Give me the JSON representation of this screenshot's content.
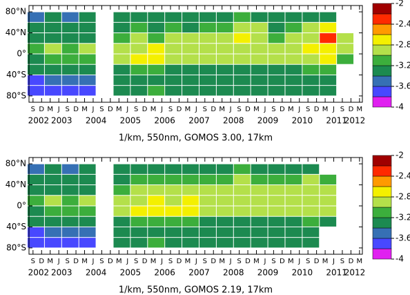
{
  "chart_data": [
    {
      "type": "heatmap",
      "xlabel": "1/km, 550nm, GOMOS 3.00, 17km",
      "xlim": [
        2002.55,
        2012.25
      ],
      "ylim": [
        -92,
        92
      ],
      "yticks": [
        {
          "value": 80,
          "label": "80°N"
        },
        {
          "value": 40,
          "label": "40°N"
        },
        {
          "value": 0,
          "label": "0°"
        },
        {
          "value": -40,
          "label": "40°S"
        },
        {
          "value": -80,
          "label": "80°S"
        }
      ],
      "xticks": [
        {
          "value": 2002.667,
          "label": "S"
        },
        {
          "value": 2002.917,
          "label": "D"
        },
        {
          "value": 2003.167,
          "label": "M"
        },
        {
          "value": 2003.417,
          "label": "J"
        },
        {
          "value": 2003.667,
          "label": "S"
        },
        {
          "value": 2003.917,
          "label": "D"
        },
        {
          "value": 2004.167,
          "label": "M"
        },
        {
          "value": 2004.417,
          "label": "J"
        },
        {
          "value": 2004.667,
          "label": "S"
        },
        {
          "value": 2004.917,
          "label": "D"
        },
        {
          "value": 2005.167,
          "label": "M"
        },
        {
          "value": 2005.417,
          "label": "J"
        },
        {
          "value": 2005.667,
          "label": "S"
        },
        {
          "value": 2005.917,
          "label": "D"
        },
        {
          "value": 2006.167,
          "label": "M"
        },
        {
          "value": 2006.417,
          "label": "J"
        },
        {
          "value": 2006.667,
          "label": "S"
        },
        {
          "value": 2006.917,
          "label": "D"
        },
        {
          "value": 2007.167,
          "label": "M"
        },
        {
          "value": 2007.417,
          "label": "J"
        },
        {
          "value": 2007.667,
          "label": "S"
        },
        {
          "value": 2007.917,
          "label": "D"
        },
        {
          "value": 2008.167,
          "label": "M"
        },
        {
          "value": 2008.417,
          "label": "J"
        },
        {
          "value": 2008.667,
          "label": "S"
        },
        {
          "value": 2008.917,
          "label": "D"
        },
        {
          "value": 2009.167,
          "label": "M"
        },
        {
          "value": 2009.417,
          "label": "J"
        },
        {
          "value": 2009.667,
          "label": "S"
        },
        {
          "value": 2009.917,
          "label": "D"
        },
        {
          "value": 2010.167,
          "label": "M"
        },
        {
          "value": 2010.417,
          "label": "J"
        },
        {
          "value": 2010.667,
          "label": "S"
        },
        {
          "value": 2010.917,
          "label": "D"
        },
        {
          "value": 2011.167,
          "label": "M"
        },
        {
          "value": 2011.417,
          "label": "J"
        },
        {
          "value": 2011.667,
          "label": "S"
        },
        {
          "value": 2011.917,
          "label": "D"
        },
        {
          "value": 2012.167,
          "label": "M"
        }
      ],
      "year_labels": [
        {
          "value": 2002.83,
          "label": "2002"
        },
        {
          "value": 2003.5,
          "label": "2003"
        },
        {
          "value": 2004.5,
          "label": "2004"
        },
        {
          "value": 2005.5,
          "label": "2005"
        },
        {
          "value": 2006.5,
          "label": "2006"
        },
        {
          "value": 2007.5,
          "label": "2007"
        },
        {
          "value": 2008.5,
          "label": "2008"
        },
        {
          "value": 2009.5,
          "label": "2009"
        },
        {
          "value": 2010.5,
          "label": "2010"
        },
        {
          "value": 2011.5,
          "label": "2011"
        },
        {
          "value": 2012.03,
          "label": "2012"
        }
      ],
      "colorbar": {
        "lim": [
          -4,
          -2
        ],
        "ticks": [
          -2,
          -2.4,
          -2.8,
          -3.2,
          -3.6,
          -4
        ],
        "colors": [
          "#e020f0",
          "#4848ff",
          "#3670b4",
          "#1c8a50",
          "#3cae3c",
          "#b4e04a",
          "#f4f000",
          "#ff9a00",
          "#ff2a00",
          "#a00000"
        ]
      },
      "x": [
        2002.75,
        2003.25,
        2003.75,
        2004.25,
        2004.75,
        2005.25,
        2005.75,
        2006.25,
        2006.75,
        2007.25,
        2007.75,
        2008.25,
        2008.75,
        2009.25,
        2009.75,
        2010.25,
        2010.75,
        2011.25,
        2011.75
      ],
      "y": [
        70,
        50,
        30,
        10,
        -10,
        -30,
        -50,
        -70
      ],
      "values": [
        [
          -3.5,
          -3.4,
          -3.5,
          -3.4,
          null,
          -3.3,
          -3.2,
          -3.3,
          -3.2,
          -3.3,
          -3.2,
          -3.3,
          -3.1,
          -3.2,
          -3.3,
          -3.2,
          -3.2,
          -3.3,
          null
        ],
        [
          -3.4,
          -3.3,
          -3.4,
          -3.3,
          null,
          -3.2,
          -3.1,
          -3.2,
          -3.1,
          -3.2,
          -3.1,
          -3.1,
          -2.9,
          -3.0,
          -3.2,
          -3.1,
          -3.0,
          -2.8,
          null
        ],
        [
          -3.3,
          -3.2,
          -3.3,
          -3.2,
          null,
          -3.1,
          -3.0,
          -3.1,
          -3.0,
          -3.0,
          -3.0,
          -3.0,
          -2.7,
          -2.9,
          -3.1,
          -3.0,
          -2.9,
          -2.4,
          -3.0
        ],
        [
          -3.1,
          -3.0,
          -3.1,
          -3.0,
          null,
          -2.9,
          -2.9,
          -2.8,
          -2.9,
          -2.9,
          -2.9,
          -2.9,
          -2.9,
          -2.9,
          -3.0,
          -3.0,
          -2.8,
          -2.7,
          -3.0
        ],
        [
          -3.2,
          -3.1,
          -3.1,
          -3.1,
          null,
          -2.9,
          -2.8,
          -2.8,
          -2.9,
          -2.9,
          -3.0,
          -2.9,
          -3.0,
          -3.0,
          -3.0,
          -3.0,
          -2.9,
          -2.8,
          -3.1
        ],
        [
          -3.4,
          -3.3,
          -3.3,
          -3.3,
          null,
          -3.2,
          -3.1,
          -3.1,
          -3.2,
          -3.2,
          -3.2,
          -3.2,
          -3.2,
          -3.2,
          -3.2,
          -3.2,
          -3.1,
          -3.1,
          null
        ],
        [
          -3.6,
          -3.5,
          -3.5,
          -3.5,
          null,
          -3.4,
          -3.3,
          -3.3,
          -3.4,
          -3.3,
          -3.4,
          -3.3,
          -3.3,
          -3.4,
          -3.3,
          -3.3,
          -3.3,
          -3.3,
          null
        ],
        [
          -3.7,
          -3.6,
          -3.6,
          -3.6,
          null,
          -3.3,
          -3.2,
          -3.1,
          -3.3,
          -3.2,
          -3.3,
          -3.2,
          -3.3,
          -3.3,
          -3.2,
          -3.3,
          -3.2,
          -3.2,
          null
        ]
      ]
    },
    {
      "type": "heatmap",
      "xlabel": "1/km, 550nm, GOMOS 2.19, 17km",
      "xlim": [
        2002.55,
        2012.25
      ],
      "ylim": [
        -92,
        92
      ],
      "yticks": [
        {
          "value": 80,
          "label": "80°N"
        },
        {
          "value": 40,
          "label": "40°N"
        },
        {
          "value": 0,
          "label": "0°"
        },
        {
          "value": -40,
          "label": "40°S"
        },
        {
          "value": -80,
          "label": "80°S"
        }
      ],
      "xticks": [
        {
          "value": 2002.667,
          "label": "S"
        },
        {
          "value": 2002.917,
          "label": "D"
        },
        {
          "value": 2003.167,
          "label": "M"
        },
        {
          "value": 2003.417,
          "label": "J"
        },
        {
          "value": 2003.667,
          "label": "S"
        },
        {
          "value": 2003.917,
          "label": "D"
        },
        {
          "value": 2004.167,
          "label": "M"
        },
        {
          "value": 2004.417,
          "label": "J"
        },
        {
          "value": 2004.667,
          "label": "S"
        },
        {
          "value": 2004.917,
          "label": "D"
        },
        {
          "value": 2005.167,
          "label": "M"
        },
        {
          "value": 2005.417,
          "label": "J"
        },
        {
          "value": 2005.667,
          "label": "S"
        },
        {
          "value": 2005.917,
          "label": "D"
        },
        {
          "value": 2006.167,
          "label": "M"
        },
        {
          "value": 2006.417,
          "label": "J"
        },
        {
          "value": 2006.667,
          "label": "S"
        },
        {
          "value": 2006.917,
          "label": "D"
        },
        {
          "value": 2007.167,
          "label": "M"
        },
        {
          "value": 2007.417,
          "label": "J"
        },
        {
          "value": 2007.667,
          "label": "S"
        },
        {
          "value": 2007.917,
          "label": "D"
        },
        {
          "value": 2008.167,
          "label": "M"
        },
        {
          "value": 2008.417,
          "label": "J"
        },
        {
          "value": 2008.667,
          "label": "S"
        },
        {
          "value": 2008.917,
          "label": "D"
        },
        {
          "value": 2009.167,
          "label": "M"
        },
        {
          "value": 2009.417,
          "label": "J"
        },
        {
          "value": 2009.667,
          "label": "S"
        },
        {
          "value": 2009.917,
          "label": "D"
        },
        {
          "value": 2010.167,
          "label": "M"
        },
        {
          "value": 2010.417,
          "label": "J"
        },
        {
          "value": 2010.667,
          "label": "S"
        },
        {
          "value": 2010.917,
          "label": "D"
        },
        {
          "value": 2011.167,
          "label": "M"
        },
        {
          "value": 2011.417,
          "label": "J"
        },
        {
          "value": 2011.667,
          "label": "S"
        },
        {
          "value": 2011.917,
          "label": "D"
        },
        {
          "value": 2012.167,
          "label": "M"
        }
      ],
      "year_labels": [
        {
          "value": 2002.83,
          "label": "2002"
        },
        {
          "value": 2003.5,
          "label": "2003"
        },
        {
          "value": 2004.5,
          "label": "2004"
        },
        {
          "value": 2005.5,
          "label": "2005"
        },
        {
          "value": 2006.5,
          "label": "2006"
        },
        {
          "value": 2007.5,
          "label": "2007"
        },
        {
          "value": 2008.5,
          "label": "2008"
        },
        {
          "value": 2009.5,
          "label": "2009"
        },
        {
          "value": 2010.5,
          "label": "2010"
        },
        {
          "value": 2011.5,
          "label": "2011"
        },
        {
          "value": 2012.03,
          "label": "2012"
        }
      ],
      "colorbar": {
        "lim": [
          -4,
          -2
        ],
        "ticks": [
          -2,
          -2.4,
          -2.8,
          -3.2,
          -3.6,
          -4
        ],
        "colors": [
          "#e020f0",
          "#4848ff",
          "#3670b4",
          "#1c8a50",
          "#3cae3c",
          "#b4e04a",
          "#f4f000",
          "#ff9a00",
          "#ff2a00",
          "#a00000"
        ]
      },
      "x": [
        2002.75,
        2003.25,
        2003.75,
        2004.25,
        2004.75,
        2005.25,
        2005.75,
        2006.25,
        2006.75,
        2007.25,
        2007.75,
        2008.25,
        2008.75,
        2009.25,
        2009.75,
        2010.25,
        2010.75,
        2011.25,
        2011.75
      ],
      "y": [
        70,
        50,
        30,
        10,
        -10,
        -30,
        -50,
        -70
      ],
      "values": [
        [
          -3.5,
          -3.4,
          -3.5,
          -3.4,
          null,
          -3.3,
          -3.2,
          -3.2,
          -3.2,
          -3.2,
          -3.2,
          -3.2,
          -3.1,
          -3.2,
          -3.2,
          -3.2,
          -3.2,
          null,
          null
        ],
        [
          -3.4,
          -3.3,
          -3.4,
          -3.3,
          null,
          -3.2,
          -3.1,
          -3.1,
          -3.1,
          -3.1,
          -3.1,
          -3.1,
          -3.0,
          -3.1,
          -3.1,
          -3.1,
          -3.0,
          -3.1,
          null
        ],
        [
          -3.3,
          -3.2,
          -3.3,
          -3.2,
          null,
          -3.1,
          -3.0,
          -3.0,
          -3.0,
          -3.0,
          -3.0,
          -3.0,
          -2.9,
          -3.0,
          -3.0,
          -3.0,
          -2.9,
          -3.0,
          null
        ],
        [
          -3.1,
          -3.0,
          -3.1,
          -3.0,
          null,
          -2.9,
          -2.9,
          -2.8,
          -2.9,
          -2.8,
          -2.9,
          -2.9,
          -2.9,
          -3.0,
          -3.0,
          -2.9,
          -2.9,
          -2.9,
          null
        ],
        [
          -3.2,
          -3.1,
          -3.1,
          -3.1,
          null,
          -2.9,
          -2.8,
          -2.8,
          -2.8,
          -2.8,
          -2.9,
          -2.9,
          -3.0,
          -3.0,
          -3.0,
          -2.9,
          -2.9,
          -3.0,
          null
        ],
        [
          -3.4,
          -3.3,
          -3.3,
          -3.3,
          null,
          -3.2,
          -3.1,
          -3.1,
          -3.1,
          -3.1,
          -3.2,
          -3.2,
          -3.2,
          -3.2,
          -3.2,
          -3.2,
          -3.1,
          -3.2,
          null
        ],
        [
          -3.6,
          -3.5,
          -3.5,
          -3.5,
          null,
          -3.4,
          -3.3,
          -3.3,
          -3.3,
          -3.3,
          -3.3,
          -3.3,
          -3.3,
          -3.3,
          -3.3,
          -3.3,
          -3.3,
          null,
          null
        ],
        [
          -3.7,
          -3.6,
          -3.6,
          -3.6,
          null,
          -3.3,
          -3.2,
          -3.1,
          -3.2,
          -3.2,
          -3.3,
          -3.2,
          -3.3,
          -3.2,
          -3.2,
          -3.2,
          -3.2,
          null,
          null
        ]
      ]
    }
  ]
}
